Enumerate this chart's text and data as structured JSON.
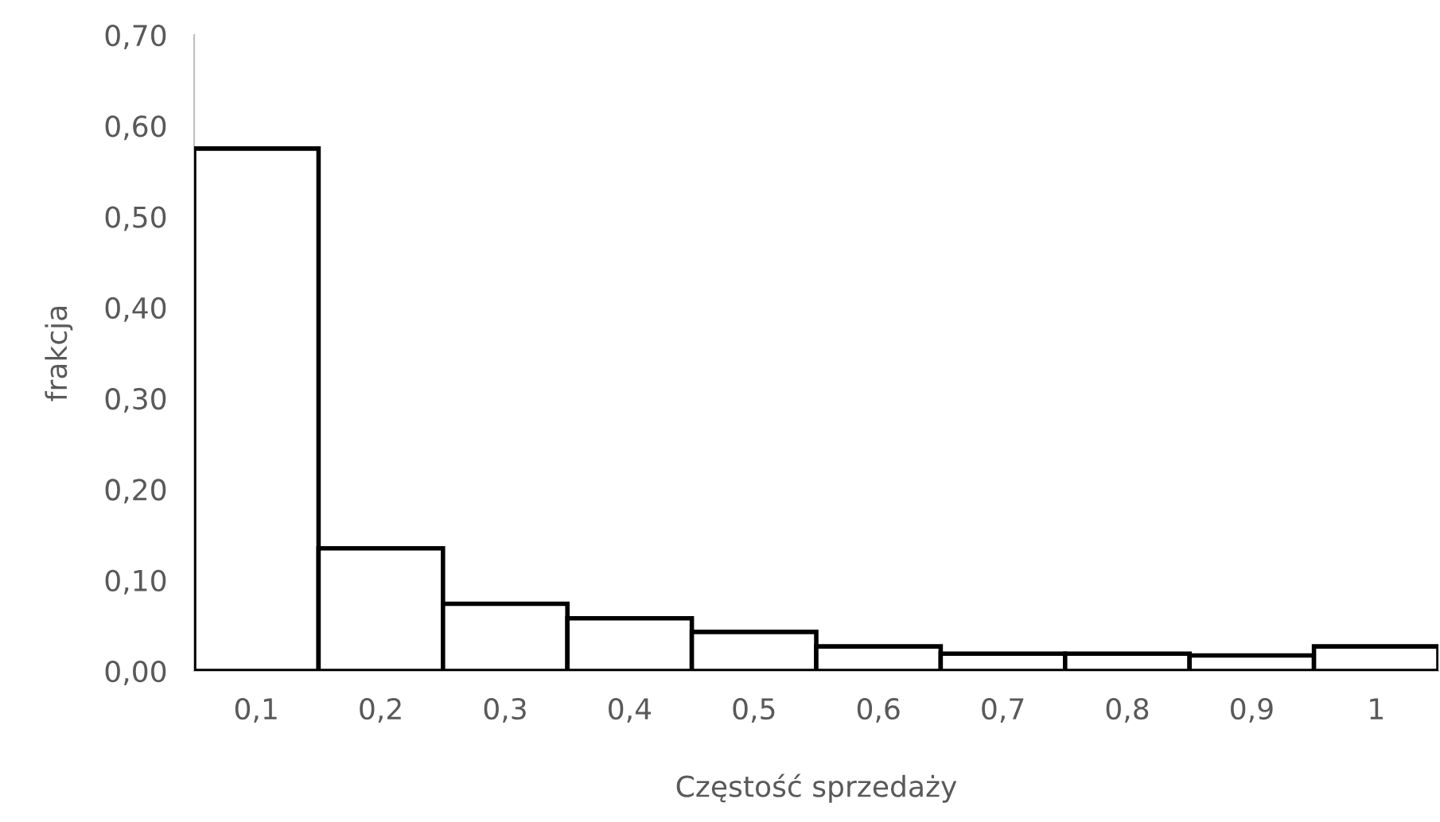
{
  "chart_data": {
    "type": "bar",
    "xlabel": "Częstość sprzedaży",
    "ylabel": "frakcja",
    "categories": [
      "0,1",
      "0,2",
      "0,3",
      "0,4",
      "0,5",
      "0,6",
      "0,7",
      "0,8",
      "0,9",
      "1"
    ],
    "values": [
      0.575,
      0.135,
      0.074,
      0.058,
      0.043,
      0.027,
      0.019,
      0.019,
      0.017,
      0.027
    ],
    "color": "#ffffff",
    "ylim": [
      0,
      0.7
    ],
    "yticks": [
      {
        "value": 0,
        "label": "0,00"
      },
      {
        "value": 0.1,
        "label": "0,10"
      },
      {
        "value": 0.2,
        "label": "0,20"
      },
      {
        "value": 0.3,
        "label": "0,30"
      },
      {
        "value": 0.4,
        "label": "0,40"
      },
      {
        "value": 0.5,
        "label": "0,50"
      },
      {
        "value": 0.6,
        "label": "0,60"
      },
      {
        "value": 0.7,
        "label": "0,70"
      }
    ],
    "grid": false
  }
}
